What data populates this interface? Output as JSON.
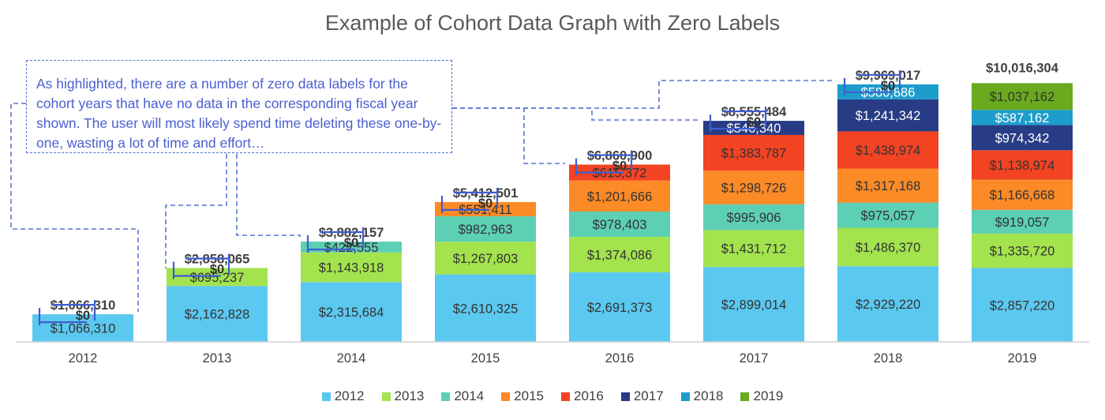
{
  "chart_data": {
    "type": "bar",
    "stacked": true,
    "title": "Example of Cohort Data Graph with Zero Labels",
    "categories": [
      "2012",
      "2013",
      "2014",
      "2015",
      "2016",
      "2017",
      "2018",
      "2019"
    ],
    "series": [
      {
        "name": "2012",
        "color": "#5bc8f0",
        "values": [
          1066310,
          2162828,
          2315684,
          2610325,
          2691373,
          2899014,
          2929220,
          2857220
        ],
        "labels": [
          "$1,066,310",
          "$2,162,828",
          "$2,315,684",
          "$2,610,325",
          "$2,691,373",
          "$2,899,014",
          "$2,929,220",
          "$2,857,220"
        ]
      },
      {
        "name": "2013",
        "color": "#a3e34e",
        "values": [
          0,
          695237,
          1143918,
          1267803,
          1374086,
          1431712,
          1486370,
          1335720
        ],
        "labels": [
          "$0",
          "$695,237",
          "$1,143,918",
          "$1,267,803",
          "$1,374,086",
          "$1,431,712",
          "$1,486,370",
          "$1,335,720"
        ]
      },
      {
        "name": "2014",
        "color": "#5ccfb4",
        "values": [
          0,
          0,
          422555,
          982963,
          978403,
          995906,
          975057,
          919057
        ],
        "labels": [
          "$0",
          "$0",
          "$422,555",
          "$982,963",
          "$978,403",
          "$995,906",
          "$975,057",
          "$919,057"
        ]
      },
      {
        "name": "2015",
        "color": "#fb8a27",
        "values": [
          0,
          0,
          0,
          551411,
          1201666,
          1298726,
          1317168,
          1166668
        ],
        "labels": [
          "$0",
          "$0",
          "$0",
          "$551,411",
          "$1,201,666",
          "$1,298,726",
          "$1,317,168",
          "$1,166,668"
        ]
      },
      {
        "name": "2016",
        "color": "#f24323",
        "values": [
          0,
          0,
          0,
          0,
          615372,
          1383787,
          1438974,
          1138974
        ],
        "labels": [
          "$0",
          "$0",
          "$0",
          "$0",
          "$615,372",
          "$1,383,787",
          "$1,438,974",
          "$1,138,974"
        ]
      },
      {
        "name": "2017",
        "color": "#273c84",
        "values": [
          0,
          0,
          0,
          0,
          0,
          546340,
          1241342,
          974342
        ],
        "labels": [
          "$0",
          "$0",
          "$0",
          "$0",
          "$0",
          "$546,340",
          "$1,241,342",
          "$974,342"
        ]
      },
      {
        "name": "2018",
        "color": "#1d9dcc",
        "values": [
          0,
          0,
          0,
          0,
          0,
          0,
          580886,
          587162
        ],
        "labels": [
          "$0",
          "$0",
          "$0",
          "$0",
          "$0",
          "$0",
          "$580,886",
          "$587,162"
        ]
      },
      {
        "name": "2019",
        "color": "#6aaa1e",
        "values": [
          0,
          0,
          0,
          0,
          0,
          0,
          0,
          1037162
        ],
        "labels": [
          "$0",
          "$0",
          "$0",
          "$0",
          "$0",
          "$0",
          "$0",
          "$1,037,162"
        ]
      }
    ],
    "totals": [
      1066310,
      2858065,
      3882157,
      5412501,
      6860900,
      8555484,
      9969017,
      10016304
    ],
    "total_labels": [
      "$1,066,310",
      "$2,858,065",
      "$3,882,157",
      "$5,412,501",
      "$6,860,900",
      "$8,555,484",
      "$9,969,017",
      "$10,016,304"
    ],
    "ylim": [
      0,
      10300000
    ],
    "legend_position": "bottom",
    "grid": false
  },
  "annotation": {
    "text": "As highlighted, there are a number of zero data labels for the cohort years that have no data in the corresponding fiscal year shown. The user will most likely spend time deleting these one-by-one, wasting a lot of time and effort…"
  }
}
